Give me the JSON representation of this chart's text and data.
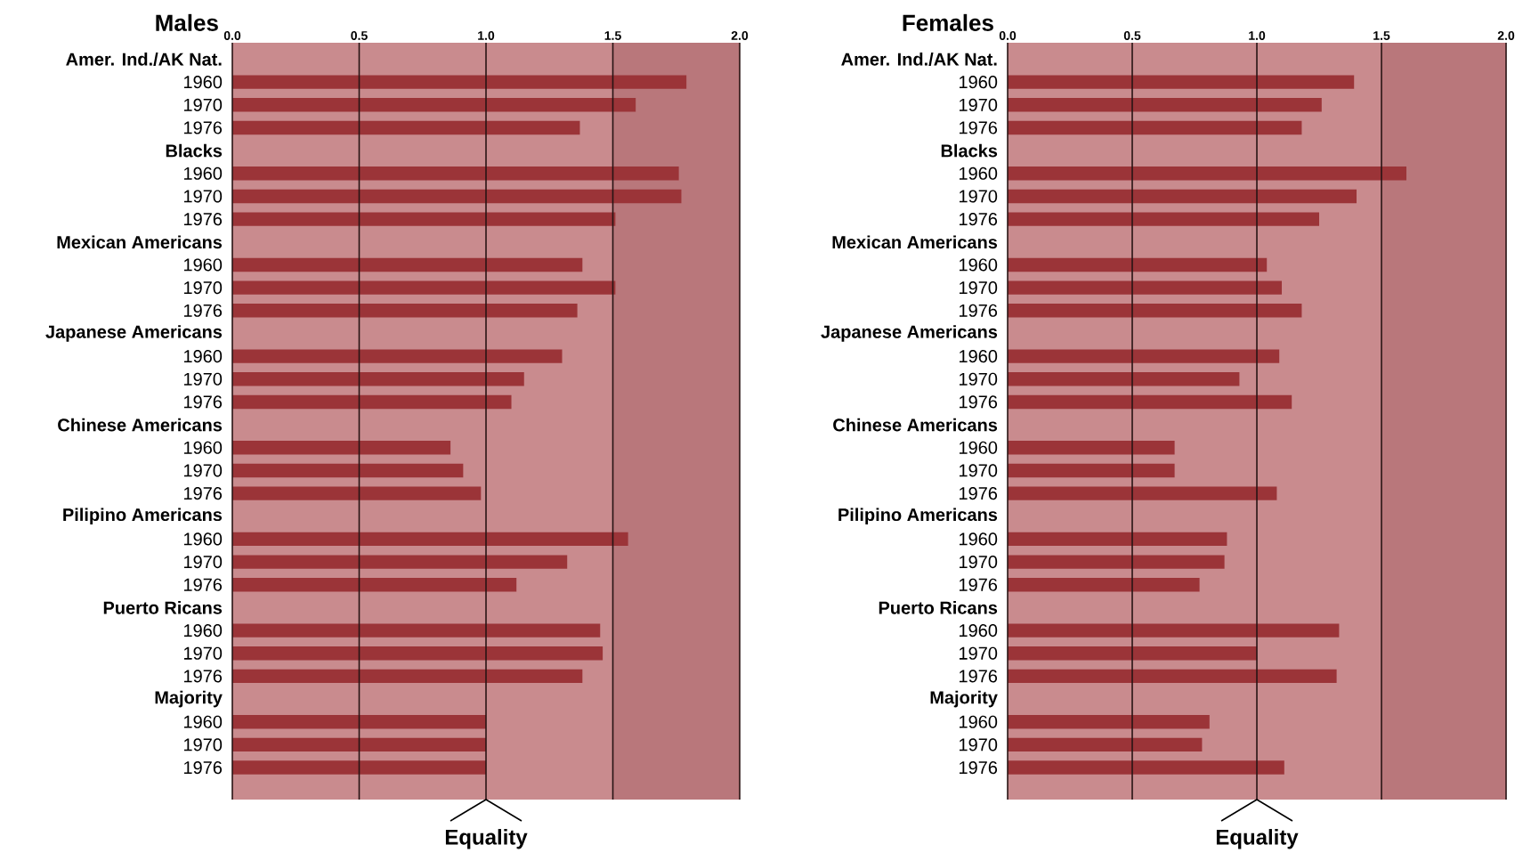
{
  "chart_data": [
    {
      "type": "bar",
      "orientation": "horizontal",
      "title": "Males",
      "color": "#9b3438",
      "grid": "x",
      "categories": [
        "Amer. Ind./AK Nat.",
        "1960",
        "1970",
        "1976",
        "Blacks",
        "1960",
        "1970",
        "1976",
        "Mexican Americans",
        "1960",
        "1970",
        "1976",
        "Japanese Americans",
        "1960",
        "1970",
        "1976",
        "Chinese Americans",
        "1960",
        "1970",
        "1976",
        "Pilipino Americans",
        "1960",
        "1970",
        "1976",
        "Puerto Ricans",
        "1960",
        "1970",
        "1976",
        "Majority",
        "1960",
        "1970",
        "1976"
      ],
      "values": [
        null,
        1.79,
        1.59,
        1.37,
        null,
        1.76,
        1.77,
        1.51,
        null,
        1.38,
        1.51,
        1.36,
        null,
        1.3,
        1.15,
        1.1,
        null,
        0.86,
        0.91,
        0.98,
        null,
        1.56,
        1.32,
        1.12,
        null,
        1.45,
        1.46,
        1.38,
        null,
        1.0,
        1.0,
        1.0
      ],
      "xlim": [
        0,
        2
      ],
      "xticks": [
        {
          "value": 0,
          "label": "0.0"
        },
        {
          "value": 0.5,
          "label": "0.5"
        },
        {
          "value": 1,
          "label": "1.0"
        },
        {
          "value": 1.5,
          "label": "1.5"
        },
        {
          "value": 2,
          "label": "2.0"
        }
      ],
      "bands": [
        {
          "axis": "x",
          "from": 1.5,
          "to": 2.0,
          "color": "#b9777b"
        }
      ],
      "annotations": [
        "Equality"
      ]
    },
    {
      "type": "bar",
      "orientation": "horizontal",
      "title": "Females",
      "color": "#9b3438",
      "grid": "x",
      "categories": [
        "Amer. Ind./AK Nat.",
        "1960",
        "1970",
        "1976",
        "Blacks",
        "1960",
        "1970",
        "1976",
        "Mexican Americans",
        "1960",
        "1970",
        "1976",
        "Japanese Americans",
        "1960",
        "1970",
        "1976",
        "Chinese Americans",
        "1960",
        "1970",
        "1976",
        "Pilipino Americans",
        "1960",
        "1970",
        "1976",
        "Puerto Ricans",
        "1960",
        "1970",
        "1976",
        "Majority",
        "1960",
        "1970",
        "1976"
      ],
      "values": [
        null,
        1.39,
        1.26,
        1.18,
        null,
        1.6,
        1.4,
        1.25,
        null,
        1.04,
        1.1,
        1.18,
        null,
        1.09,
        0.93,
        1.14,
        null,
        0.67,
        0.67,
        1.08,
        null,
        0.88,
        0.87,
        0.77,
        null,
        1.33,
        1.0,
        1.32,
        null,
        0.81,
        0.78,
        1.11
      ],
      "xlim": [
        0,
        2
      ],
      "xticks": [
        {
          "value": 0,
          "label": "0.0"
        },
        {
          "value": 0.5,
          "label": "0.5"
        },
        {
          "value": 1,
          "label": "1.0"
        },
        {
          "value": 1.5,
          "label": "1.5"
        },
        {
          "value": 2,
          "label": "2.0"
        }
      ],
      "bands": [
        {
          "axis": "x",
          "from": 1.5,
          "to": 2.0,
          "color": "#b9777b"
        }
      ],
      "annotations": [
        "Equality"
      ]
    }
  ]
}
